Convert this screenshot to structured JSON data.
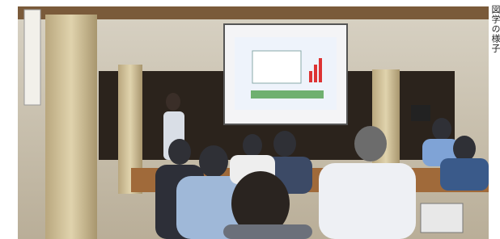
{
  "caption": "図学の様子"
}
